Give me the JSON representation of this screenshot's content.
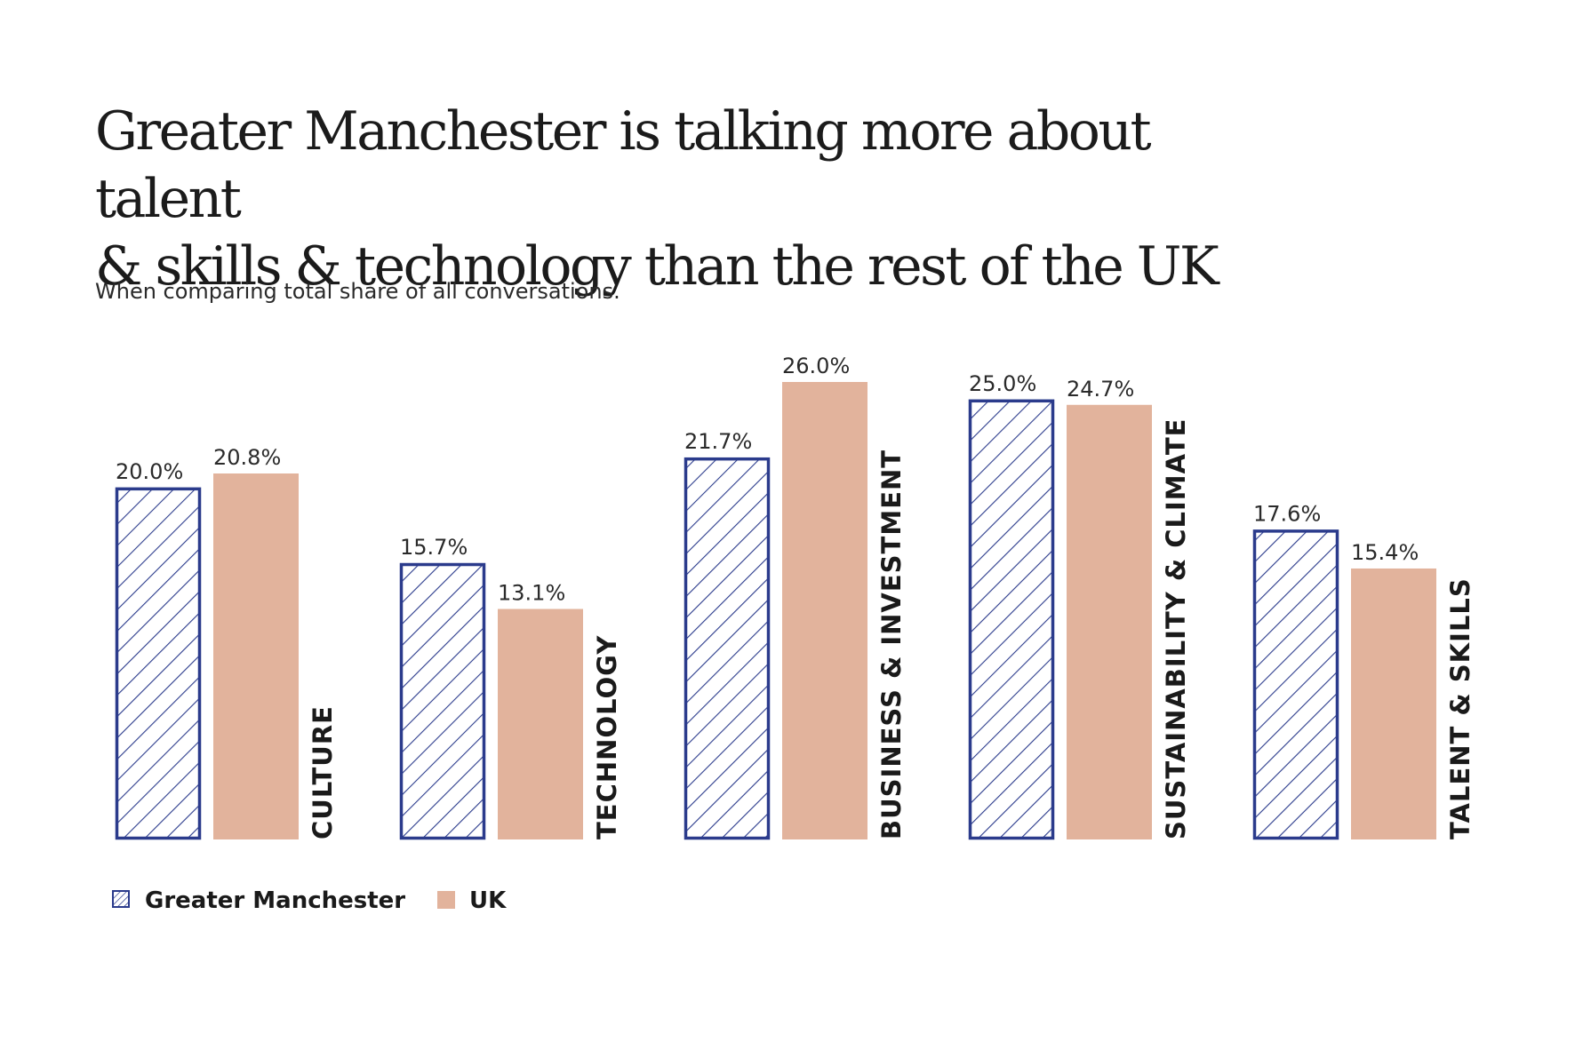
{
  "title_line1": "Greater Manchester is talking more about talent",
  "title_line2": "& skills & technology than the rest of the UK",
  "subtitle": "When comparing total share of all conversations.",
  "chart_data": {
    "type": "bar",
    "categories": [
      "CULTURE",
      "TECHNOLOGY",
      "BUSINESS & INVESTMENT",
      "SUSTAINABILITY & CLIMATE",
      "TALENT & SKILLS"
    ],
    "series": [
      {
        "name": "Greater Manchester",
        "values": [
          20.0,
          15.7,
          21.7,
          25.0,
          17.6
        ],
        "labels": [
          "20.0%",
          "15.7%",
          "21.7%",
          "25.0%",
          "17.6%"
        ],
        "style": "hatched",
        "color": "#2b3b8c"
      },
      {
        "name": "UK",
        "values": [
          20.8,
          13.1,
          26.0,
          24.7,
          15.4
        ],
        "labels": [
          "20.8%",
          "13.1%",
          "26.0%",
          "24.7%",
          "15.4%"
        ],
        "style": "solid",
        "color": "#e2b39c"
      }
    ],
    "unit": "%",
    "ylim": [
      0,
      26.0
    ],
    "grid": false,
    "legend_position": "bottom-left"
  }
}
